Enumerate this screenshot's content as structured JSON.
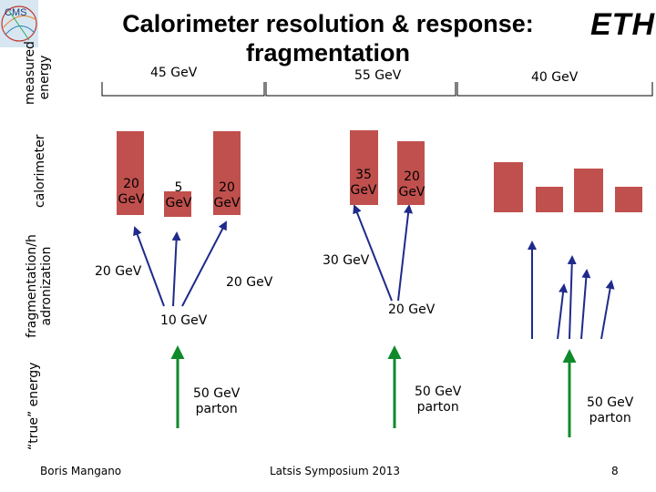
{
  "title": "Calorimeter resolution & response: fragmentation",
  "logo_text": "ETH",
  "logo_cms": "CMS",
  "side_labels": {
    "measured_energy": [
      "measured",
      "energy"
    ],
    "calorimeter": "calorimeter",
    "fragmentation": [
      "fragmentation/h",
      "adronization"
    ],
    "true_energy": "“true” energy"
  },
  "groups": [
    {
      "energy_label": "45 GeV",
      "jets": [
        {
          "bar_label": [
            "20",
            "GeV"
          ],
          "fragment_label": "20 GeV"
        },
        {
          "bar_label": [
            "5",
            "GeV"
          ],
          "fragment_label": "10 GeV"
        },
        {
          "bar_label": [
            "20",
            "GeV"
          ],
          "fragment_label": "20 GeV"
        }
      ],
      "parton_label": [
        "50 GeV",
        "parton"
      ]
    },
    {
      "energy_label": "55 GeV",
      "jets": [
        {
          "bar_label": [
            "35",
            "GeV"
          ],
          "fragment_label": "30 GeV"
        },
        {
          "bar_label": [
            "20",
            "GeV"
          ],
          "fragment_label": "20 GeV"
        }
      ],
      "parton_label": [
        "50 GeV",
        "parton"
      ]
    },
    {
      "energy_label": "40 GeV",
      "parton_label": [
        "50 GeV",
        "parton"
      ]
    }
  ],
  "footer": {
    "author": "Boris Mangano",
    "event": "Latsis Symposium 2013",
    "page": "8"
  },
  "colors": {
    "bar": "#c0504d",
    "parton_arrow": "#0f8a2a",
    "fragment_arrow": "#1f2a8a"
  }
}
